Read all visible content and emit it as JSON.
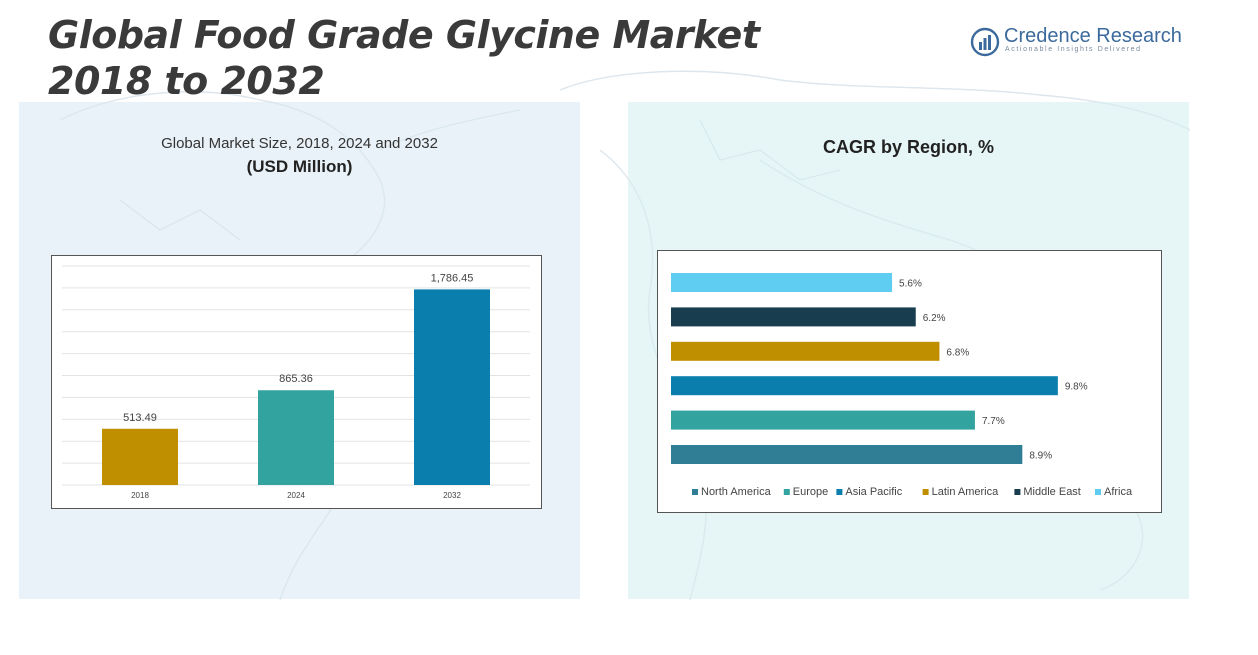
{
  "title_line1": "Global Food Grade Glycine Market",
  "title_line2": "2018 to 2032",
  "logo": {
    "name": "Credence Research",
    "tagline": "Actionable Insights Delivered",
    "icon": "bar-chart-logo-icon"
  },
  "left_panel": {
    "subtitle": "Global Market Size, 2018, 2024 and 2032",
    "unit": "(USD Million)"
  },
  "right_panel": {
    "subtitle": "CAGR by Region, %"
  },
  "chart_data": [
    {
      "type": "bar",
      "title": "Global Market Size, 2018, 2024 and 2032",
      "ylabel": "(USD Million)",
      "categories": [
        "2018",
        "2024",
        "2032"
      ],
      "values": [
        513.49,
        865.36,
        1786.45
      ],
      "value_labels": [
        "513.49",
        "865.36",
        "1,786.45"
      ],
      "colors": [
        "#bf8f00",
        "#33a3a0",
        "#0a7fae"
      ],
      "ylim": [
        0,
        2000
      ],
      "grid": true
    },
    {
      "type": "bar",
      "orientation": "horizontal",
      "title": "CAGR by Region, %",
      "categories": [
        "Africa",
        "Middle East",
        "Latin America",
        "Asia Pacific",
        "Europe",
        "North America"
      ],
      "values": [
        5.6,
        6.2,
        6.8,
        9.8,
        7.7,
        8.9
      ],
      "value_labels": [
        "5.6%",
        "6.2%",
        "6.8%",
        "9.8%",
        "7.7%",
        "8.9%"
      ],
      "colors": [
        "#5fcdf2",
        "#183d4e",
        "#bf8f00",
        "#0a7fae",
        "#33a3a0",
        "#2f7e96"
      ],
      "legend": {
        "position": "bottom",
        "items": [
          {
            "label": "North America",
            "color": "#2f7e96"
          },
          {
            "label": "Europe",
            "color": "#33a3a0"
          },
          {
            "label": "Asia Pacific",
            "color": "#0a7fae"
          },
          {
            "label": "Latin America",
            "color": "#bf8f00"
          },
          {
            "label": "Middle East",
            "color": "#183d4e"
          },
          {
            "label": "Africa",
            "color": "#5fcdf2"
          }
        ]
      },
      "xlim": [
        0,
        10
      ]
    }
  ]
}
